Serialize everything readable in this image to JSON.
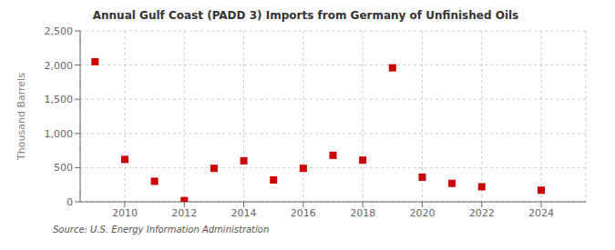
{
  "chart_data": {
    "type": "scatter",
    "title": "Annual Gulf Coast (PADD 3) Imports from Germany of Unfinished Oils",
    "ylabel": "Thousand Barrels",
    "annotation": "Source: U.S. Energy Information Administration",
    "x": [
      2009,
      2010,
      2011,
      2012,
      2013,
      2014,
      2015,
      2016,
      2017,
      2018,
      2019,
      2020,
      2021,
      2022,
      2024
    ],
    "values": [
      2050,
      620,
      300,
      18,
      490,
      600,
      320,
      490,
      680,
      610,
      1960,
      360,
      270,
      220,
      170
    ],
    "color": "#cc0000",
    "marker": "square",
    "xlim": [
      2008.5,
      2025.5
    ],
    "xticks": [
      2010,
      2012,
      2014,
      2016,
      2018,
      2020,
      2022,
      2024
    ],
    "ylim": [
      0,
      2500
    ],
    "yticks": [
      0,
      500,
      {
        "value": 1000,
        "label": "1,000"
      },
      {
        "value": 1500,
        "label": "1,500"
      },
      {
        "value": 2000,
        "label": "2,000"
      },
      {
        "value": 2500,
        "label": "2,500"
      }
    ],
    "grid": true
  }
}
